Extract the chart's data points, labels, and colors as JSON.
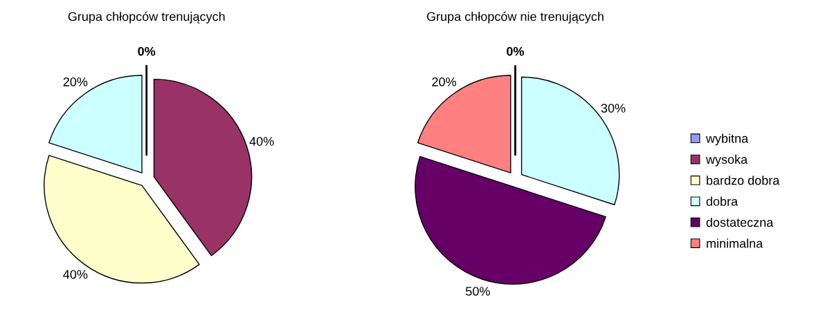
{
  "chart_data": [
    {
      "type": "pie",
      "title": "Grupa chłopców trenujących",
      "categories": [
        "wybitna",
        "wysoka",
        "bardzo dobra",
        "dobra",
        "dostateczna",
        "minimalna"
      ],
      "values": [
        0,
        40,
        40,
        20,
        0,
        0
      ],
      "colors": [
        "#9999ff",
        "#993366",
        "#ffffcc",
        "#ccffff",
        "#660066",
        "#ff8080"
      ],
      "value_labels": [
        "0%",
        "40%",
        "40%",
        "20%",
        null,
        null
      ],
      "legend": "right"
    },
    {
      "type": "pie",
      "title": "Grupa chłopców nie trenujących",
      "categories": [
        null,
        null,
        null,
        null,
        null,
        null
      ],
      "values": [
        0,
        0,
        0,
        30,
        50,
        20
      ],
      "colors": [
        "#9999ff",
        "#993366",
        "#ffffcc",
        "#ccffff",
        "#660066",
        "#ff8080"
      ],
      "value_labels": [
        "0%",
        null,
        null,
        "30%",
        "50%",
        "20%"
      ]
    }
  ]
}
